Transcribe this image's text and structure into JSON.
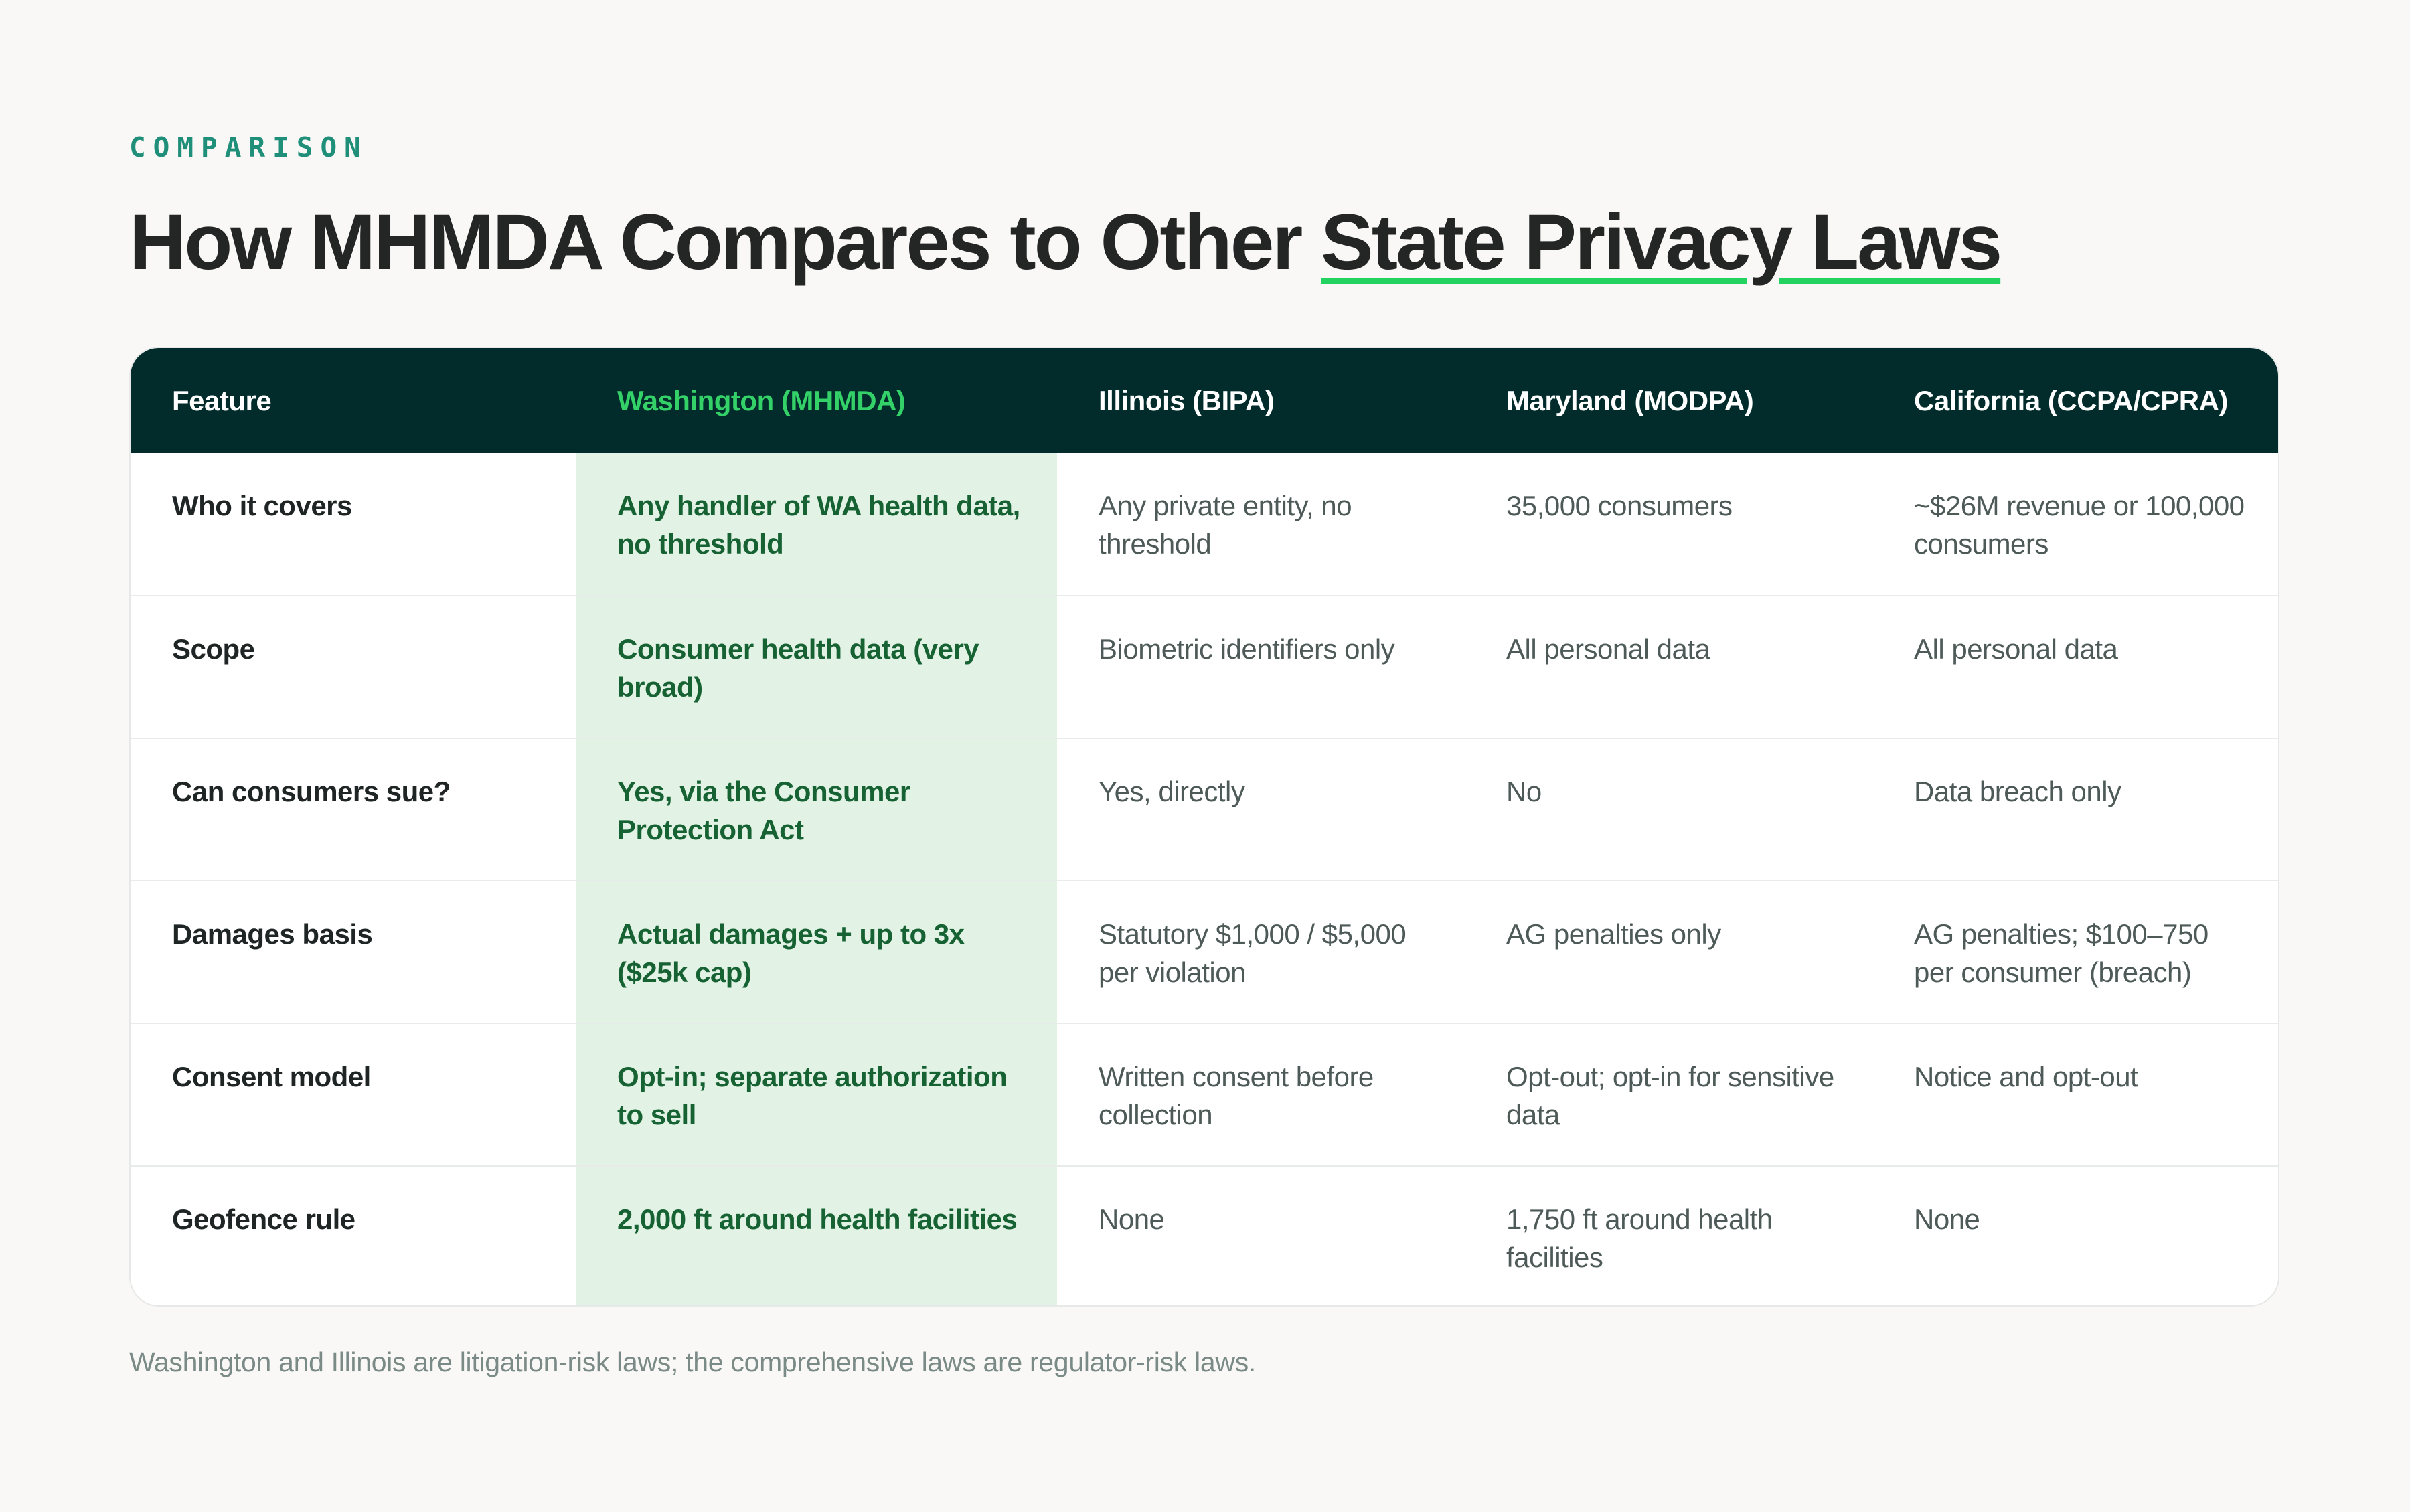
{
  "eyebrow": "COMPARISON",
  "title": {
    "prefix": "How MHMDA Compares to Other ",
    "highlight": "State Privacy Laws"
  },
  "table": {
    "headers": [
      "Feature",
      "Washington (MHMDA)",
      "Illinois (BIPA)",
      "Maryland (MODPA)",
      "California (CCPA/CPRA)"
    ],
    "rows": [
      [
        "Who it covers",
        "Any handler of WA health data, no threshold",
        "Any private entity, no threshold",
        "35,000 consumers",
        "~$26M revenue or 100,000 consumers"
      ],
      [
        "Scope",
        "Consumer health data (very broad)",
        "Biometric identifiers only",
        "All personal data",
        "All personal data"
      ],
      [
        "Can consumers sue?",
        "Yes, via the Consumer Protection Act",
        "Yes, directly",
        "No",
        "Data breach only"
      ],
      [
        "Damages basis",
        "Actual damages + up to 3x ($25k cap)",
        "Statutory $1,000 / $5,000 per violation",
        "AG penalties only",
        "AG penalties; $100–750 per consumer (breach)"
      ],
      [
        "Consent model",
        "Opt-in; separate authorization to sell",
        "Written consent before collection",
        "Opt-out; opt-in for sensitive data",
        "Notice and opt-out"
      ],
      [
        "Geofence rule",
        "2,000 ft around health facilities",
        "None",
        "1,750 ft around health facilities",
        "None"
      ]
    ]
  },
  "footnote": "Washington and Illinois are litigation-risk laws; the comprehensive laws are regulator-risk laws.",
  "colors": {
    "accent_green": "#22d35f",
    "header_bg": "#022c2c",
    "highlight_col_bg": "#e2f3e6",
    "eyebrow": "#1f8f7a"
  }
}
